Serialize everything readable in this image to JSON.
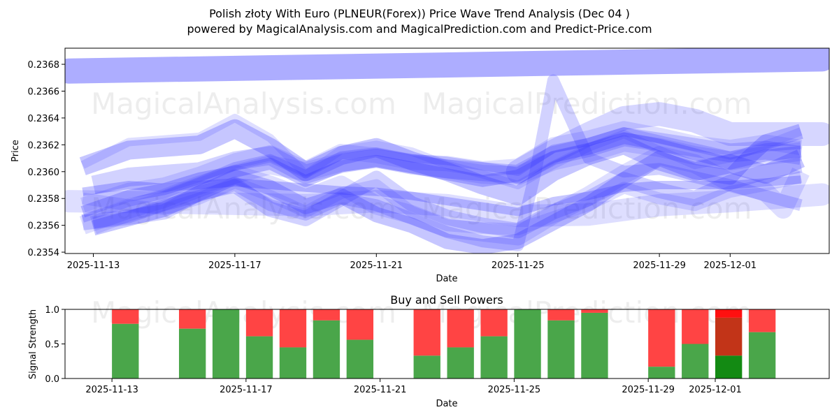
{
  "title_line1": "Polish złoty With Euro (PLNEUR(Forex)) Price Wave Trend Analysis (Dec 04 )",
  "title_line2": "powered by MagicalAnalysis.com and MagicalPrediction.com and Predict-Price.com",
  "watermarks": [
    "MagicalAnalysis.com",
    "MagicalPrediction.com"
  ],
  "chart_data": [
    {
      "type": "line",
      "title": "",
      "xlabel": "Date",
      "ylabel": "Price",
      "xlim": [
        -0.8,
        20.8
      ],
      "ylim": [
        0.23539,
        0.23692
      ],
      "x_ticks": [
        {
          "x": 0,
          "label": "2025-11-13"
        },
        {
          "x": 4,
          "label": "2025-11-17"
        },
        {
          "x": 8,
          "label": "2025-11-21"
        },
        {
          "x": 12,
          "label": "2025-11-25"
        },
        {
          "x": 16,
          "label": "2025-11-29"
        },
        {
          "x": 18,
          "label": "2025-12-01"
        }
      ],
      "y_ticks": [
        {
          "v": 0.2354,
          "label": "0.2354"
        },
        {
          "v": 0.2356,
          "label": "0.2356"
        },
        {
          "v": 0.2358,
          "label": "0.2358"
        },
        {
          "v": 0.236,
          "label": "0.2360"
        },
        {
          "v": 0.2362,
          "label": "0.2362"
        },
        {
          "v": 0.2364,
          "label": "0.2364"
        },
        {
          "v": 0.2366,
          "label": "0.2366"
        },
        {
          "v": 0.2368,
          "label": "0.2368"
        }
      ],
      "color": "#3333ff",
      "series": [
        {
          "name": "wave-top",
          "x": [
            -0.7,
            20.6
          ],
          "values": [
            0.23675,
            0.23684
          ]
        },
        {
          "name": "wave-upper",
          "x": [
            12,
            13,
            14,
            15,
            16,
            17,
            18,
            20.6
          ],
          "values": [
            0.236,
            0.23615,
            0.23628,
            0.2364,
            0.23643,
            0.23638,
            0.23628,
            0.23628
          ]
        },
        {
          "name": "wave-lower",
          "x": [
            -0.7,
            2,
            4,
            6,
            8,
            10,
            12,
            14,
            16,
            18,
            20.6
          ],
          "values": [
            0.23578,
            0.23577,
            0.23576,
            0.23575,
            0.23578,
            0.23575,
            0.23567,
            0.23568,
            0.23575,
            0.23578,
            0.23583
          ]
        },
        {
          "name": "wave-1",
          "x": [
            -0.3,
            1,
            2,
            3,
            4,
            5,
            6,
            7,
            8,
            9,
            10,
            11,
            12,
            13,
            14,
            15,
            16,
            17,
            18,
            19,
            20
          ],
          "values": [
            0.2356,
            0.23572,
            0.2358,
            0.2359,
            0.23598,
            0.23605,
            0.236,
            0.23607,
            0.2361,
            0.23606,
            0.23602,
            0.23598,
            0.23597,
            0.23608,
            0.23614,
            0.23622,
            0.23618,
            0.23612,
            0.23608,
            0.23612,
            0.23615
          ]
        },
        {
          "name": "wave-2",
          "x": [
            -0.3,
            1,
            2,
            3,
            4,
            5,
            6,
            7,
            8,
            9,
            10,
            11,
            12,
            13,
            14,
            15,
            16,
            17,
            18,
            19,
            20
          ],
          "values": [
            0.23565,
            0.23577,
            0.23583,
            0.23593,
            0.23604,
            0.2361,
            0.23598,
            0.23612,
            0.23615,
            0.2361,
            0.23608,
            0.23604,
            0.236,
            0.23617,
            0.23622,
            0.2363,
            0.23624,
            0.23618,
            0.23612,
            0.23618,
            0.2362
          ]
        },
        {
          "name": "wave-3",
          "x": [
            -0.3,
            1,
            2,
            3,
            4,
            5,
            6,
            7,
            8,
            9,
            10,
            11,
            12,
            13,
            14,
            15,
            16,
            17,
            18,
            19,
            20
          ],
          "values": [
            0.2357,
            0.23582,
            0.23587,
            0.23595,
            0.236,
            0.23606,
            0.23593,
            0.23604,
            0.23608,
            0.23603,
            0.23598,
            0.23593,
            0.23597,
            0.23611,
            0.23617,
            0.23625,
            0.2362,
            0.23613,
            0.23606,
            0.23612,
            0.23615
          ]
        },
        {
          "name": "wave-4",
          "x": [
            -0.3,
            1,
            2,
            3,
            4,
            5,
            6,
            7,
            8,
            9,
            10,
            11,
            12,
            13,
            14,
            15,
            16,
            17,
            18,
            19,
            20
          ],
          "values": [
            0.23575,
            0.23586,
            0.2359,
            0.23598,
            0.23608,
            0.23614,
            0.23602,
            0.23615,
            0.23612,
            0.23607,
            0.23606,
            0.23602,
            0.23604,
            0.2362,
            0.23625,
            0.23632,
            0.23627,
            0.23621,
            0.23618,
            0.23622,
            0.23618
          ]
        },
        {
          "name": "wave-5",
          "x": [
            0,
            1,
            2,
            3,
            4,
            5,
            6,
            7,
            8,
            9,
            10,
            11,
            12,
            13,
            14,
            15,
            16,
            17,
            18,
            19,
            20
          ],
          "values": [
            0.2359,
            0.23596,
            0.23598,
            0.236,
            0.23608,
            0.23612,
            0.23598,
            0.23606,
            0.2361,
            0.23605,
            0.23602,
            0.236,
            0.23598,
            0.23612,
            0.23618,
            0.23626,
            0.23622,
            0.23618,
            0.23614,
            0.23616,
            0.23612
          ]
        },
        {
          "name": "wave-6",
          "x": [
            -0.3,
            1,
            2,
            3,
            4,
            5,
            6,
            7,
            8,
            9,
            10,
            11,
            12,
            13,
            14,
            15,
            16,
            17,
            18,
            19,
            20
          ],
          "values": [
            0.23585,
            0.2359,
            0.23588,
            0.2359,
            0.23592,
            0.2359,
            0.23588,
            0.23586,
            0.23585,
            0.23582,
            0.23578,
            0.23574,
            0.2357,
            0.23578,
            0.23582,
            0.23588,
            0.2359,
            0.2359,
            0.2359,
            0.23592,
            0.23594
          ]
        },
        {
          "name": "wave-7",
          "x": [
            -0.3,
            1,
            2,
            3,
            4,
            5,
            6,
            7,
            8,
            9,
            10,
            11,
            12,
            13,
            14,
            15,
            16,
            17,
            18,
            19,
            20
          ],
          "values": [
            0.2358,
            0.23575,
            0.23572,
            0.2358,
            0.23592,
            0.23582,
            0.2357,
            0.23584,
            0.2359,
            0.2357,
            0.2356,
            0.23558,
            0.23557,
            0.23566,
            0.23575,
            0.23588,
            0.2358,
            0.23575,
            0.23585,
            0.2359,
            0.23596
          ]
        },
        {
          "name": "wave-8",
          "x": [
            -0.3,
            1,
            2,
            3,
            4,
            5,
            6,
            7,
            8,
            9,
            10,
            11,
            12,
            13,
            14,
            15,
            16,
            17,
            18,
            19,
            20
          ],
          "values": [
            0.23562,
            0.23566,
            0.2357,
            0.23584,
            0.2359,
            0.23572,
            0.23565,
            0.2358,
            0.23595,
            0.23576,
            0.23566,
            0.2356,
            0.23556,
            0.2357,
            0.2358,
            0.23594,
            0.23586,
            0.2358,
            0.23592,
            0.236,
            0.23605
          ]
        },
        {
          "name": "wave-9",
          "x": [
            -0.3,
            1,
            2,
            3,
            4,
            5,
            6,
            7,
            8,
            9,
            10,
            11,
            12,
            13,
            14,
            15,
            16,
            17,
            18,
            19,
            20
          ],
          "values": [
            0.23604,
            0.23616,
            0.23618,
            0.2362,
            0.23632,
            0.23618,
            0.236,
            0.23612,
            0.23618,
            0.23608,
            0.236,
            0.2359,
            0.23582,
            0.236,
            0.23612,
            0.2362,
            0.23608,
            0.236,
            0.23606,
            0.23598,
            0.2361
          ]
        },
        {
          "name": "wave-10",
          "x": [
            -0.3,
            1,
            2,
            3,
            4,
            5,
            6,
            7,
            8,
            9,
            10,
            11,
            12,
            13,
            14,
            15,
            16,
            17,
            18,
            19,
            20
          ],
          "values": [
            0.23605,
            0.23622,
            0.23624,
            0.23626,
            0.2364,
            0.23625,
            0.23598,
            0.23616,
            0.2362,
            0.23615,
            0.23605,
            0.23598,
            0.2359,
            0.23605,
            0.23618,
            0.23628,
            0.23616,
            0.23605,
            0.2361,
            0.2362,
            0.2363
          ]
        },
        {
          "name": "wave-11",
          "x": [
            0,
            1,
            2,
            3,
            4,
            5,
            6,
            7,
            8,
            9,
            10,
            11,
            12,
            12.5,
            13,
            14,
            15,
            16,
            17,
            18,
            19,
            20
          ],
          "values": [
            0.23562,
            0.23566,
            0.23575,
            0.23582,
            0.2359,
            0.23575,
            0.23568,
            0.2358,
            0.23575,
            0.23565,
            0.23555,
            0.23548,
            0.23545,
            0.236,
            0.23668,
            0.2361,
            0.236,
            0.23602,
            0.23596,
            0.2359,
            0.23582,
            0.23575
          ]
        },
        {
          "name": "wave-12",
          "x": [
            0,
            1,
            2,
            3,
            4,
            5,
            6,
            7,
            8,
            9,
            10,
            11,
            12,
            13,
            14,
            15,
            16,
            17,
            18,
            18.5,
            19,
            20
          ],
          "values": [
            0.23558,
            0.23565,
            0.23572,
            0.23584,
            0.23596,
            0.23588,
            0.23574,
            0.23582,
            0.23568,
            0.2356,
            0.23548,
            0.23544,
            0.23548,
            0.23562,
            0.23576,
            0.23594,
            0.2361,
            0.236,
            0.23596,
            0.2361,
            0.23622,
            0.2363
          ]
        },
        {
          "name": "wave-13",
          "x": [
            0,
            1,
            2,
            3,
            4,
            5,
            6,
            7,
            8,
            9,
            10,
            11,
            12,
            13,
            14,
            15,
            16,
            17,
            18,
            19,
            19.5,
            20
          ],
          "values": [
            0.2356,
            0.2357,
            0.23578,
            0.23588,
            0.23598,
            0.2359,
            0.2358,
            0.2359,
            0.23575,
            0.23568,
            0.23558,
            0.23555,
            0.23552,
            0.23568,
            0.23582,
            0.23598,
            0.23612,
            0.23606,
            0.23592,
            0.23585,
            0.23572,
            0.236
          ]
        }
      ]
    },
    {
      "type": "bar",
      "title": "Buy and Sell Powers",
      "xlabel": "Date",
      "ylabel": "Signal Strength",
      "xlim": [
        -1.4,
        21.4
      ],
      "ylim": [
        0,
        1
      ],
      "x_ticks": [
        {
          "x": 0,
          "label": "2025-11-13"
        },
        {
          "x": 4,
          "label": "2025-11-17"
        },
        {
          "x": 8,
          "label": "2025-11-21"
        },
        {
          "x": 12,
          "label": "2025-11-25"
        },
        {
          "x": 16,
          "label": "2025-11-29"
        },
        {
          "x": 18,
          "label": "2025-12-01"
        }
      ],
      "y_ticks": [
        {
          "v": 0,
          "label": "0.0"
        },
        {
          "v": 0.5,
          "label": "0.5"
        },
        {
          "v": 1,
          "label": "1.0"
        }
      ],
      "buy_color": "#4aa64a",
      "sell_color": "#ff4444",
      "bars": [
        {
          "x": 0.4,
          "buy": 0.79
        },
        {
          "x": 2.4,
          "buy": 0.72
        },
        {
          "x": 3.4,
          "buy": 1.0
        },
        {
          "x": 4.4,
          "buy": 0.61
        },
        {
          "x": 5.4,
          "buy": 0.45
        },
        {
          "x": 6.4,
          "buy": 0.84
        },
        {
          "x": 7.4,
          "buy": 0.56
        },
        {
          "x": 9.4,
          "buy": 0.33
        },
        {
          "x": 10.4,
          "buy": 0.45
        },
        {
          "x": 11.4,
          "buy": 0.61
        },
        {
          "x": 12.4,
          "buy": 1.0
        },
        {
          "x": 13.4,
          "buy": 0.84
        },
        {
          "x": 14.4,
          "buy": 0.95
        },
        {
          "x": 16.4,
          "buy": 0.17
        },
        {
          "x": 17.4,
          "buy": 0.5
        },
        {
          "x": 18.4,
          "buy": 0.33,
          "buy_color": "#138a13",
          "sell_color": "#c23418",
          "top": 0.88,
          "top_color": "#ff1010"
        },
        {
          "x": 19.4,
          "buy": 0.67
        }
      ]
    }
  ]
}
